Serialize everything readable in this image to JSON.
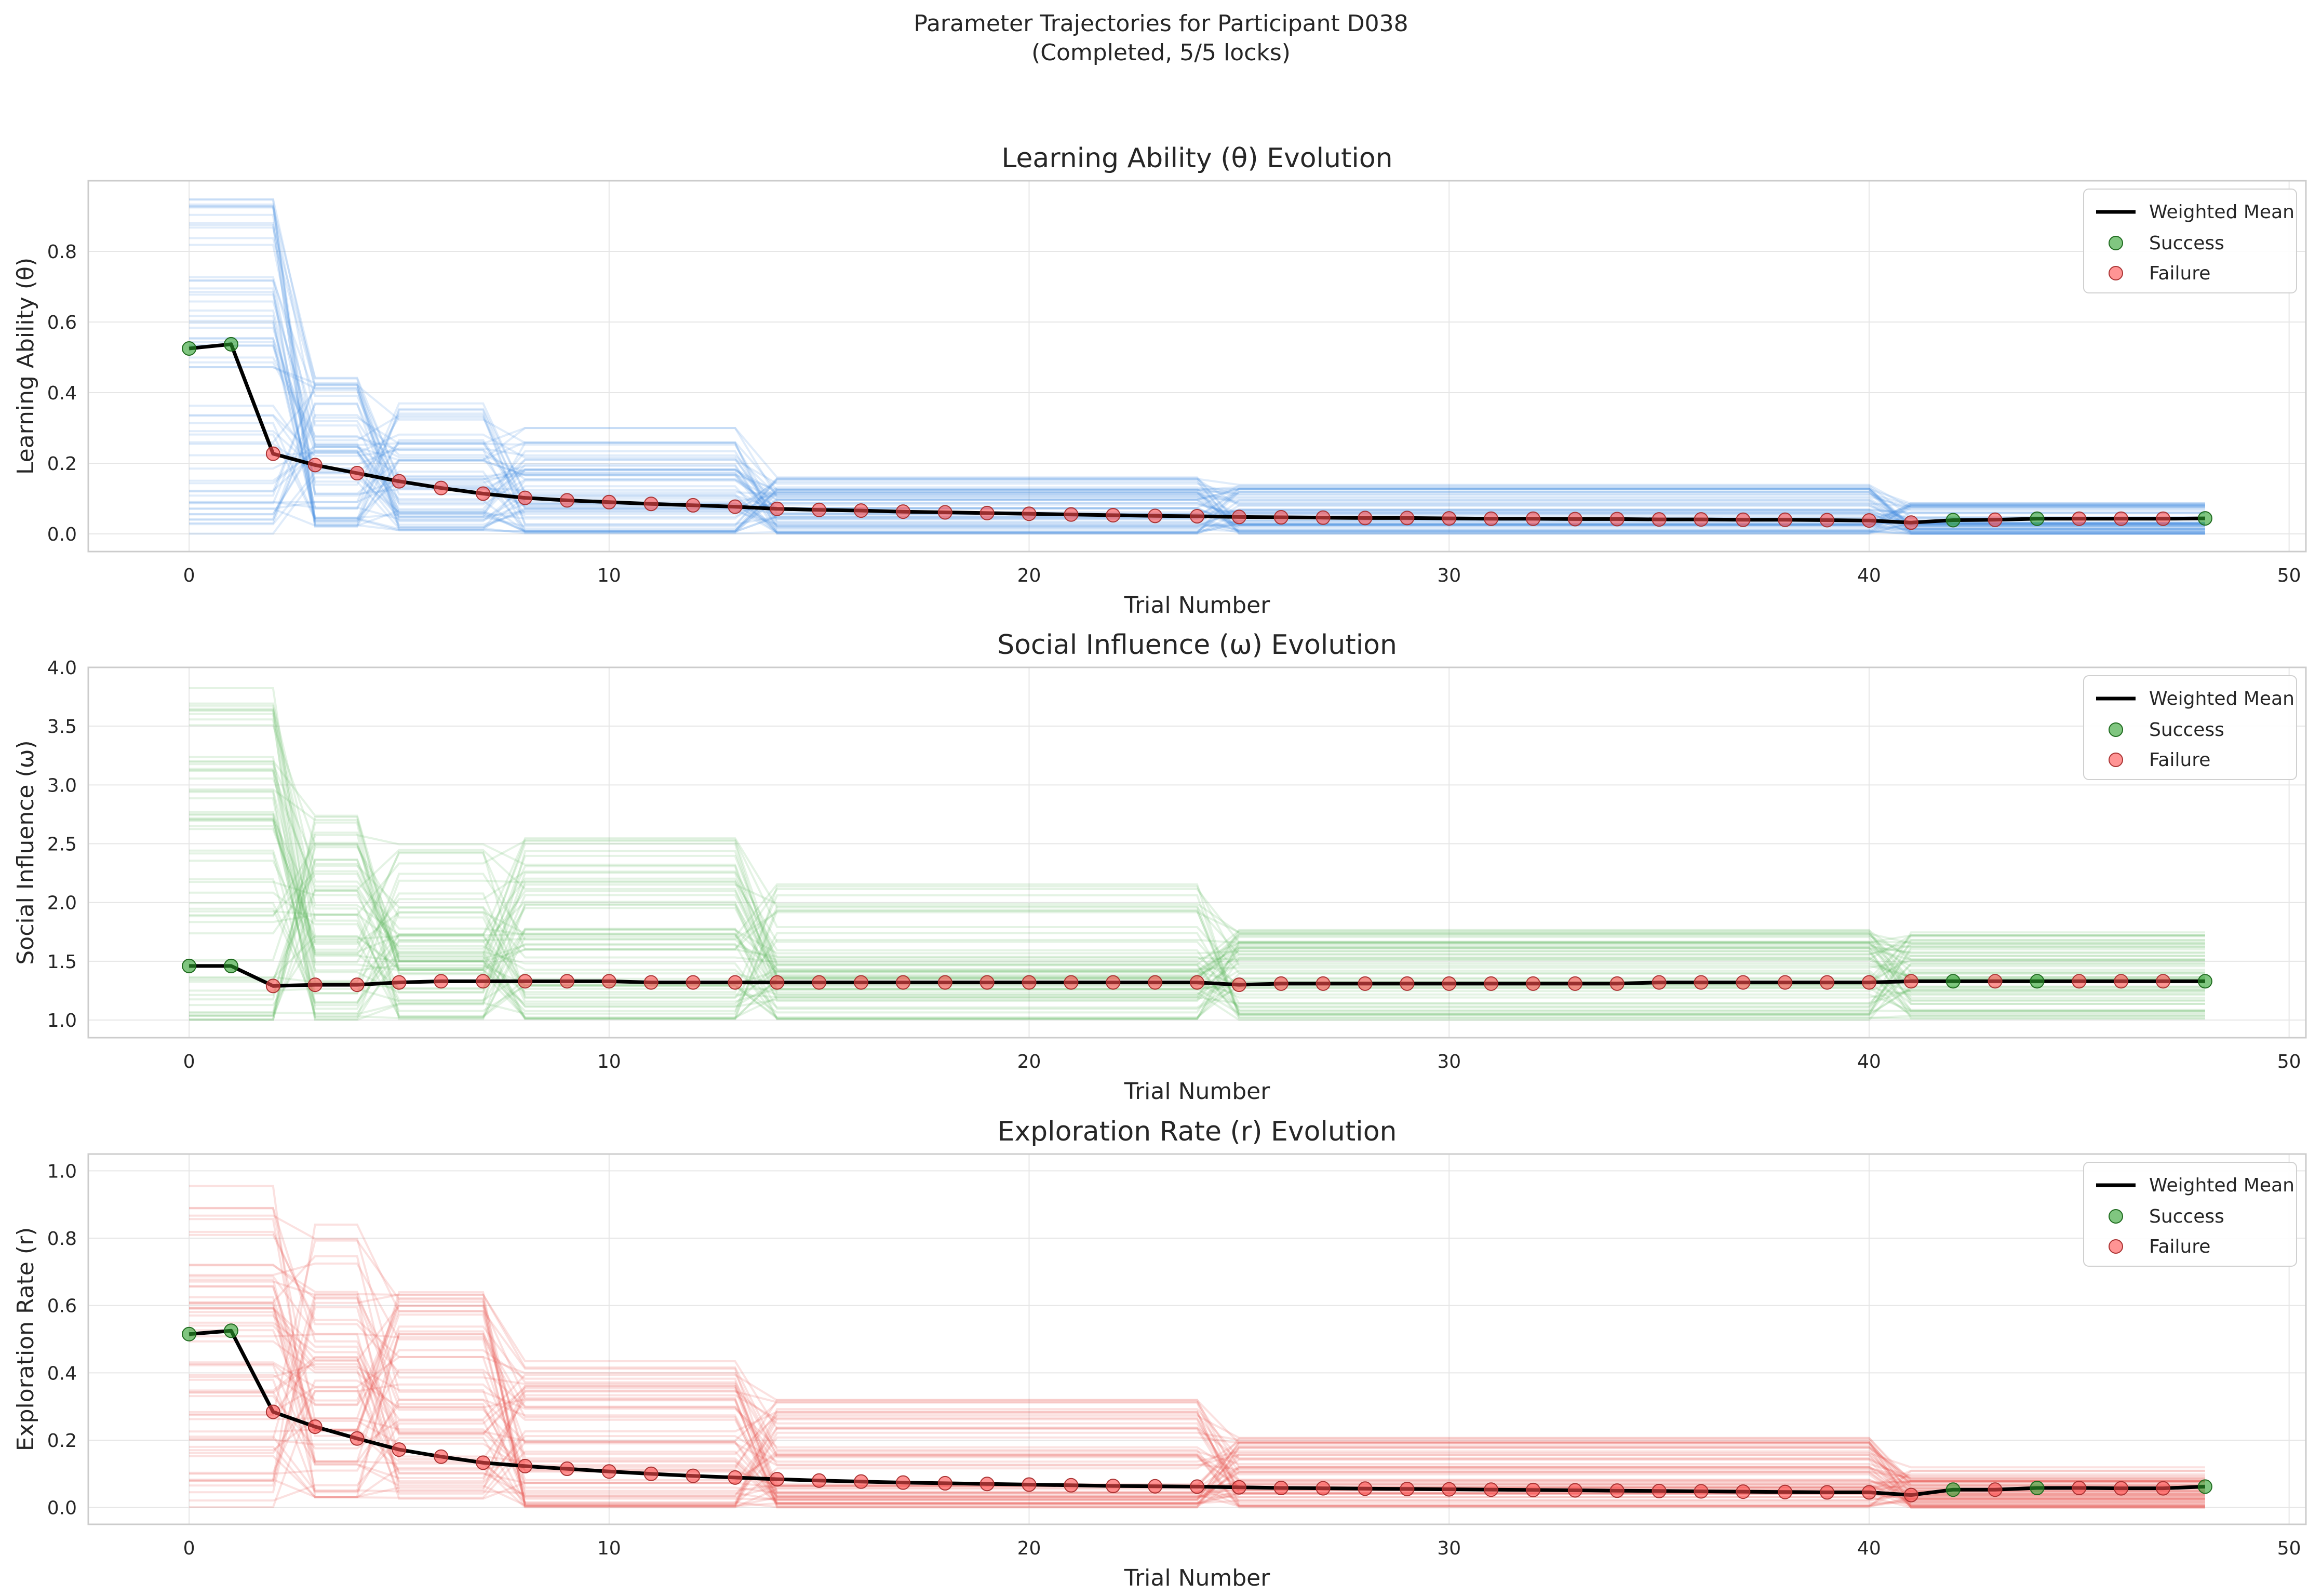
{
  "suptitle_line1": "Parameter Trajectories for Participant D038",
  "suptitle_line2": "(Completed, 5/5 locks)",
  "colors": {
    "theta": "#4a90e2",
    "omega": "#5cb85c",
    "r": "#e8504a",
    "mean": "#000000",
    "success": "#2ca02c",
    "failure": "#ff4d4d",
    "grid": "#e6e6e6",
    "spine": "#cccccc"
  },
  "legend": {
    "mean_label": "Weighted Mean",
    "success_label": "Success",
    "failure_label": "Failure"
  },
  "outcomes": [
    "S",
    "S",
    "F",
    "F",
    "F",
    "F",
    "F",
    "F",
    "F",
    "F",
    "F",
    "F",
    "F",
    "F",
    "F",
    "F",
    "F",
    "F",
    "F",
    "F",
    "F",
    "F",
    "F",
    "F",
    "F",
    "F",
    "F",
    "F",
    "F",
    "F",
    "F",
    "F",
    "F",
    "F",
    "F",
    "F",
    "F",
    "F",
    "F",
    "F",
    "F",
    "F",
    "S",
    "F",
    "S",
    "F",
    "F",
    "F",
    "S"
  ],
  "chart_data": [
    {
      "type": "line",
      "title": "Learning Ability (θ) Evolution",
      "xlabel": "Trial Number",
      "ylabel": "Learning Ability (θ)",
      "xlim": [
        -2.4,
        50.4
      ],
      "ylim": [
        -0.05,
        1.0
      ],
      "xticks": [
        0,
        10,
        20,
        30,
        40,
        50
      ],
      "yticks": [
        0.0,
        0.2,
        0.4,
        0.6,
        0.8
      ],
      "ytick_decimals": 1,
      "grid": true,
      "legend_position": "top-right",
      "x": [
        0,
        1,
        2,
        3,
        4,
        5,
        6,
        7,
        8,
        9,
        10,
        11,
        12,
        13,
        14,
        15,
        16,
        17,
        18,
        19,
        20,
        21,
        22,
        23,
        24,
        25,
        26,
        27,
        28,
        29,
        30,
        31,
        32,
        33,
        34,
        35,
        36,
        37,
        38,
        39,
        40,
        41,
        42,
        43,
        44,
        45,
        46,
        47,
        48
      ],
      "series": [
        {
          "name": "Weighted Mean",
          "values": [
            0.525,
            0.537,
            0.227,
            0.195,
            0.172,
            0.149,
            0.13,
            0.114,
            0.102,
            0.095,
            0.09,
            0.085,
            0.081,
            0.077,
            0.071,
            0.068,
            0.066,
            0.063,
            0.061,
            0.059,
            0.057,
            0.055,
            0.053,
            0.051,
            0.05,
            0.048,
            0.047,
            0.046,
            0.045,
            0.045,
            0.044,
            0.043,
            0.043,
            0.042,
            0.042,
            0.041,
            0.041,
            0.04,
            0.04,
            0.039,
            0.038,
            0.032,
            0.039,
            0.04,
            0.043,
            0.043,
            0.043,
            0.043,
            0.044
          ]
        }
      ],
      "particles": {
        "count": 60,
        "band": [
          [
            0.0,
            0.95
          ],
          [
            0.0,
            0.95
          ],
          [
            0.0,
            0.95
          ],
          [
            0.02,
            0.45
          ],
          [
            0.02,
            0.45
          ],
          [
            0.01,
            0.38
          ],
          [
            0.01,
            0.38
          ],
          [
            0.01,
            0.38
          ],
          [
            0.0,
            0.3
          ],
          [
            0.0,
            0.3
          ],
          [
            0.0,
            0.3
          ],
          [
            0.0,
            0.3
          ],
          [
            0.0,
            0.3
          ],
          [
            0.0,
            0.3
          ],
          [
            0.0,
            0.16
          ],
          [
            0.0,
            0.16
          ],
          [
            0.0,
            0.16
          ],
          [
            0.0,
            0.16
          ],
          [
            0.0,
            0.16
          ],
          [
            0.0,
            0.16
          ],
          [
            0.0,
            0.16
          ],
          [
            0.0,
            0.16
          ],
          [
            0.0,
            0.16
          ],
          [
            0.0,
            0.16
          ],
          [
            0.0,
            0.16
          ],
          [
            0.0,
            0.14
          ],
          [
            0.0,
            0.14
          ],
          [
            0.0,
            0.14
          ],
          [
            0.0,
            0.14
          ],
          [
            0.0,
            0.14
          ],
          [
            0.0,
            0.14
          ],
          [
            0.0,
            0.14
          ],
          [
            0.0,
            0.14
          ],
          [
            0.0,
            0.14
          ],
          [
            0.0,
            0.14
          ],
          [
            0.0,
            0.14
          ],
          [
            0.0,
            0.14
          ],
          [
            0.0,
            0.14
          ],
          [
            0.0,
            0.14
          ],
          [
            0.0,
            0.14
          ],
          [
            0.0,
            0.14
          ],
          [
            0.0,
            0.09
          ],
          [
            0.0,
            0.09
          ],
          [
            0.0,
            0.09
          ],
          [
            0.0,
            0.09
          ],
          [
            0.0,
            0.09
          ],
          [
            0.0,
            0.09
          ],
          [
            0.0,
            0.09
          ],
          [
            0.0,
            0.09
          ]
        ]
      }
    },
    {
      "type": "line",
      "title": "Social Influence (ω) Evolution",
      "xlabel": "Trial Number",
      "ylabel": "Social Influence (ω)",
      "xlim": [
        -2.4,
        50.4
      ],
      "ylim": [
        0.85,
        4.0
      ],
      "xticks": [
        0,
        10,
        20,
        30,
        40,
        50
      ],
      "yticks": [
        1.0,
        1.5,
        2.0,
        2.5,
        3.0,
        3.5,
        4.0
      ],
      "ytick_decimals": 1,
      "grid": true,
      "legend_position": "top-right",
      "x": [
        0,
        1,
        2,
        3,
        4,
        5,
        6,
        7,
        8,
        9,
        10,
        11,
        12,
        13,
        14,
        15,
        16,
        17,
        18,
        19,
        20,
        21,
        22,
        23,
        24,
        25,
        26,
        27,
        28,
        29,
        30,
        31,
        32,
        33,
        34,
        35,
        36,
        37,
        38,
        39,
        40,
        41,
        42,
        43,
        44,
        45,
        46,
        47,
        48
      ],
      "series": [
        {
          "name": "Weighted Mean",
          "values": [
            1.46,
            1.46,
            1.29,
            1.3,
            1.3,
            1.32,
            1.33,
            1.33,
            1.33,
            1.33,
            1.33,
            1.32,
            1.32,
            1.32,
            1.32,
            1.32,
            1.32,
            1.32,
            1.32,
            1.32,
            1.32,
            1.32,
            1.32,
            1.32,
            1.32,
            1.3,
            1.31,
            1.31,
            1.31,
            1.31,
            1.31,
            1.31,
            1.31,
            1.31,
            1.31,
            1.32,
            1.32,
            1.32,
            1.32,
            1.32,
            1.32,
            1.33,
            1.33,
            1.33,
            1.33,
            1.33,
            1.33,
            1.33,
            1.33
          ]
        }
      ],
      "particles": {
        "count": 60,
        "band": [
          [
            1.0,
            3.85
          ],
          [
            1.0,
            3.85
          ],
          [
            1.0,
            3.85
          ],
          [
            1.0,
            2.75
          ],
          [
            1.0,
            2.75
          ],
          [
            1.0,
            2.5
          ],
          [
            1.0,
            2.5
          ],
          [
            1.0,
            2.5
          ],
          [
            1.0,
            2.57
          ],
          [
            1.0,
            2.57
          ],
          [
            1.0,
            2.57
          ],
          [
            1.0,
            2.57
          ],
          [
            1.0,
            2.57
          ],
          [
            1.0,
            2.57
          ],
          [
            1.0,
            2.24
          ],
          [
            1.0,
            2.24
          ],
          [
            1.0,
            2.24
          ],
          [
            1.0,
            2.24
          ],
          [
            1.0,
            2.24
          ],
          [
            1.0,
            2.24
          ],
          [
            1.0,
            2.24
          ],
          [
            1.0,
            2.24
          ],
          [
            1.0,
            2.24
          ],
          [
            1.0,
            2.24
          ],
          [
            1.0,
            2.24
          ],
          [
            1.0,
            1.8
          ],
          [
            1.0,
            1.8
          ],
          [
            1.0,
            1.8
          ],
          [
            1.0,
            1.8
          ],
          [
            1.0,
            1.8
          ],
          [
            1.0,
            1.8
          ],
          [
            1.0,
            1.8
          ],
          [
            1.0,
            1.8
          ],
          [
            1.0,
            1.8
          ],
          [
            1.0,
            1.8
          ],
          [
            1.0,
            1.8
          ],
          [
            1.0,
            1.8
          ],
          [
            1.0,
            1.8
          ],
          [
            1.0,
            1.8
          ],
          [
            1.0,
            1.8
          ],
          [
            1.0,
            1.8
          ],
          [
            1.0,
            1.75
          ],
          [
            1.0,
            1.75
          ],
          [
            1.0,
            1.75
          ],
          [
            1.0,
            1.75
          ],
          [
            1.0,
            1.75
          ],
          [
            1.0,
            1.75
          ],
          [
            1.0,
            1.75
          ],
          [
            1.0,
            1.75
          ]
        ]
      }
    },
    {
      "type": "line",
      "title": "Exploration Rate (r) Evolution",
      "xlabel": "Trial Number",
      "ylabel": "Exploration Rate (r)",
      "xlim": [
        -2.4,
        50.4
      ],
      "ylim": [
        -0.05,
        1.05
      ],
      "xticks": [
        0,
        10,
        20,
        30,
        40,
        50
      ],
      "yticks": [
        0.0,
        0.2,
        0.4,
        0.6,
        0.8,
        1.0
      ],
      "ytick_decimals": 1,
      "grid": true,
      "legend_position": "top-right",
      "x": [
        0,
        1,
        2,
        3,
        4,
        5,
        6,
        7,
        8,
        9,
        10,
        11,
        12,
        13,
        14,
        15,
        16,
        17,
        18,
        19,
        20,
        21,
        22,
        23,
        24,
        25,
        26,
        27,
        28,
        29,
        30,
        31,
        32,
        33,
        34,
        35,
        36,
        37,
        38,
        39,
        40,
        41,
        42,
        43,
        44,
        45,
        46,
        47,
        48
      ],
      "series": [
        {
          "name": "Weighted Mean",
          "values": [
            0.515,
            0.525,
            0.284,
            0.24,
            0.205,
            0.172,
            0.151,
            0.133,
            0.123,
            0.115,
            0.107,
            0.1,
            0.094,
            0.089,
            0.084,
            0.08,
            0.077,
            0.074,
            0.072,
            0.07,
            0.068,
            0.066,
            0.064,
            0.063,
            0.062,
            0.06,
            0.058,
            0.057,
            0.056,
            0.055,
            0.054,
            0.053,
            0.052,
            0.051,
            0.05,
            0.049,
            0.048,
            0.047,
            0.046,
            0.045,
            0.045,
            0.037,
            0.053,
            0.053,
            0.058,
            0.058,
            0.057,
            0.057,
            0.062
          ]
        }
      ],
      "particles": {
        "count": 60,
        "band": [
          [
            0.0,
            0.99
          ],
          [
            0.0,
            0.99
          ],
          [
            0.0,
            0.99
          ],
          [
            0.03,
            0.85
          ],
          [
            0.03,
            0.85
          ],
          [
            0.02,
            0.64
          ],
          [
            0.02,
            0.64
          ],
          [
            0.02,
            0.64
          ],
          [
            0.0,
            0.46
          ],
          [
            0.0,
            0.46
          ],
          [
            0.0,
            0.46
          ],
          [
            0.0,
            0.46
          ],
          [
            0.0,
            0.46
          ],
          [
            0.0,
            0.46
          ],
          [
            0.0,
            0.32
          ],
          [
            0.0,
            0.32
          ],
          [
            0.0,
            0.32
          ],
          [
            0.0,
            0.32
          ],
          [
            0.0,
            0.32
          ],
          [
            0.0,
            0.32
          ],
          [
            0.0,
            0.32
          ],
          [
            0.0,
            0.32
          ],
          [
            0.0,
            0.32
          ],
          [
            0.0,
            0.32
          ],
          [
            0.0,
            0.32
          ],
          [
            0.0,
            0.21
          ],
          [
            0.0,
            0.21
          ],
          [
            0.0,
            0.21
          ],
          [
            0.0,
            0.21
          ],
          [
            0.0,
            0.21
          ],
          [
            0.0,
            0.21
          ],
          [
            0.0,
            0.21
          ],
          [
            0.0,
            0.21
          ],
          [
            0.0,
            0.21
          ],
          [
            0.0,
            0.21
          ],
          [
            0.0,
            0.21
          ],
          [
            0.0,
            0.21
          ],
          [
            0.0,
            0.21
          ],
          [
            0.0,
            0.21
          ],
          [
            0.0,
            0.21
          ],
          [
            0.0,
            0.21
          ],
          [
            0.0,
            0.12
          ],
          [
            0.0,
            0.12
          ],
          [
            0.0,
            0.12
          ],
          [
            0.0,
            0.12
          ],
          [
            0.0,
            0.12
          ],
          [
            0.0,
            0.12
          ],
          [
            0.0,
            0.12
          ],
          [
            0.0,
            0.12
          ]
        ]
      }
    }
  ]
}
